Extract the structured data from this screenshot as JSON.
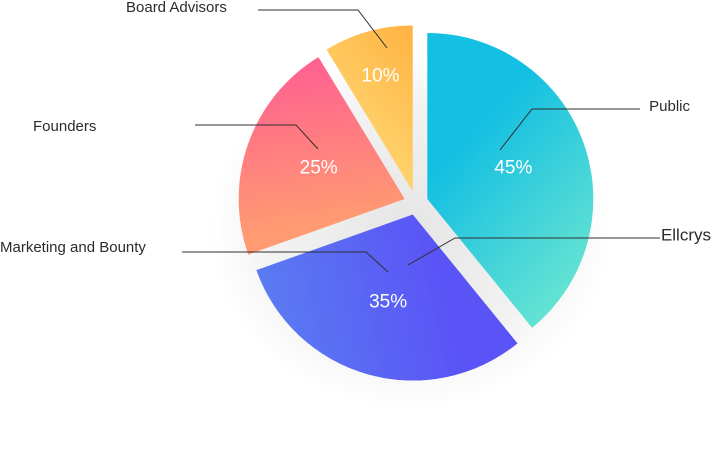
{
  "chart_data": {
    "type": "pie",
    "title": "",
    "slices": [
      {
        "name": "Public",
        "value": 45,
        "label": "45%",
        "colors": [
          "#13bfe2",
          "#63e2d3"
        ]
      },
      {
        "name": "Ellcrys",
        "value": 0,
        "label": "",
        "colors": [
          "#13bfe2",
          "#63e2d3"
        ]
      },
      {
        "name": "Marketing and Bounty",
        "value": 35,
        "label": "35%",
        "colors": [
          "#5a54f6",
          "#5a7bf2"
        ]
      },
      {
        "name": "Founders",
        "value": 25,
        "label": "25%",
        "colors": [
          "#ff9a72",
          "#ff5c92"
        ]
      },
      {
        "name": "Board Advisors",
        "value": 10,
        "label": "10%",
        "colors": [
          "#ffd671",
          "#ffa42f"
        ]
      }
    ]
  }
}
